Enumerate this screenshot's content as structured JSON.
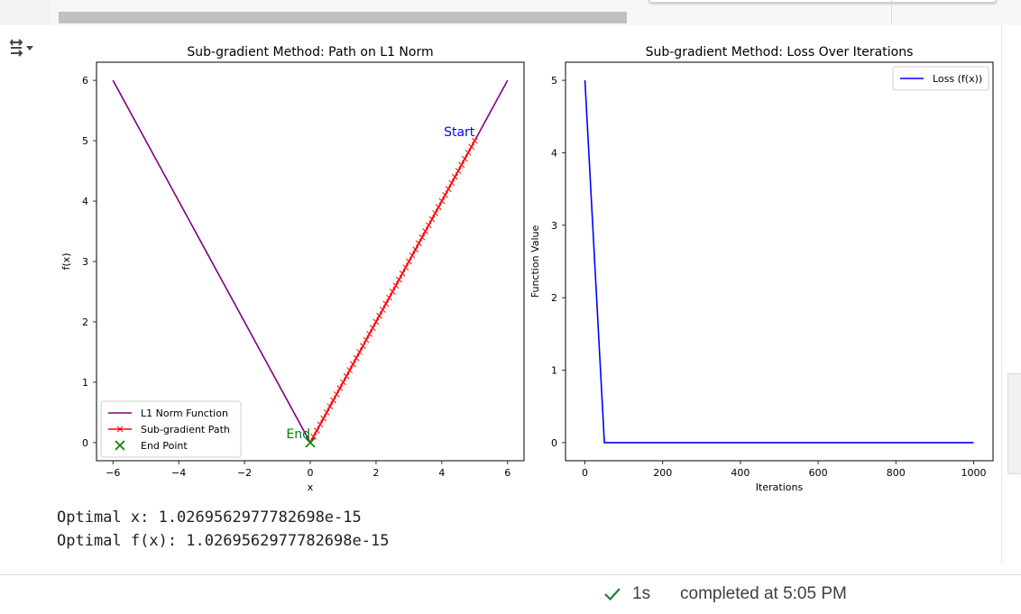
{
  "status": {
    "duration": "1s",
    "completed_text": "completed at 5:05 PM",
    "check_color": "#188038"
  },
  "output": {
    "lines": [
      "Optimal x: 1.0269562977782698e-15",
      "Optimal f(x): 1.0269562977782698e-15"
    ]
  },
  "icons": {
    "output_toggle": "output-collapse-icon",
    "status": "check-icon"
  },
  "chart_data": [
    {
      "type": "line",
      "title": "Sub-gradient Method: Path on L1 Norm",
      "xlabel": "x",
      "ylabel": "f(x)",
      "xlim": [
        -6.5,
        6.5
      ],
      "ylim": [
        -0.3,
        6.3
      ],
      "xticks": [
        -6,
        -4,
        -2,
        0,
        2,
        4,
        6
      ],
      "xtick_labels": [
        "−6",
        "−4",
        "−2",
        "0",
        "2",
        "4",
        "6"
      ],
      "yticks": [
        0,
        1,
        2,
        3,
        4,
        5,
        6
      ],
      "ytick_labels": [
        "0",
        "1",
        "2",
        "3",
        "4",
        "5",
        "6"
      ],
      "legend_position": "lower-left",
      "series": [
        {
          "name": "L1 Norm Function",
          "kind": "line",
          "color": "#800080",
          "x": [
            -6,
            0,
            6
          ],
          "y": [
            6,
            0,
            6
          ]
        },
        {
          "name": "Sub-gradient Path",
          "kind": "line-markers",
          "marker": "x",
          "color": "#ff0000",
          "x_start": 5,
          "x_end": 0,
          "step": 0.1
        },
        {
          "name": "End Point",
          "kind": "marker",
          "marker": "X",
          "color": "#008000",
          "x": [
            0
          ],
          "y": [
            0
          ]
        }
      ],
      "annotations": [
        {
          "text": "Start",
          "x": 5,
          "y": 5,
          "color": "#0000ff"
        },
        {
          "text": "End",
          "x": 0,
          "y": 0,
          "color": "#008000"
        }
      ]
    },
    {
      "type": "line",
      "title": "Sub-gradient Method: Loss Over Iterations",
      "xlabel": "Iterations",
      "ylabel": "Function Value",
      "xlim": [
        -50,
        1050
      ],
      "ylim": [
        -0.25,
        5.25
      ],
      "xticks": [
        0,
        200,
        400,
        600,
        800,
        1000
      ],
      "xtick_labels": [
        "0",
        "200",
        "400",
        "600",
        "800",
        "1000"
      ],
      "yticks": [
        0,
        1,
        2,
        3,
        4,
        5
      ],
      "ytick_labels": [
        "0",
        "1",
        "2",
        "3",
        "4",
        "5"
      ],
      "legend_position": "upper-right",
      "series": [
        {
          "name": "Loss (f(x))",
          "kind": "line",
          "color": "#0000ff",
          "x": [
            0,
            10,
            20,
            30,
            40,
            50,
            100,
            200,
            300,
            400,
            500,
            600,
            700,
            800,
            900,
            1000
          ],
          "y": [
            5,
            4,
            3,
            2,
            1,
            0,
            0,
            0,
            0,
            0,
            0,
            0,
            0,
            0,
            0,
            0
          ]
        }
      ]
    }
  ]
}
